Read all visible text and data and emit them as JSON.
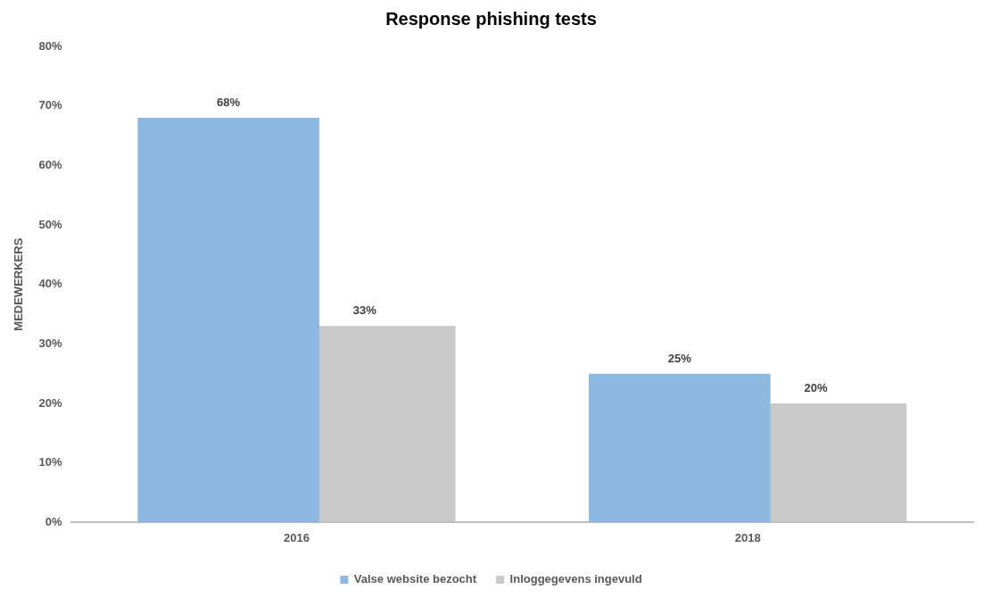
{
  "chart_data": {
    "type": "bar",
    "title": "Response phishing tests",
    "ylabel": "MEDEWERKERS",
    "categories": [
      "2016",
      "2018"
    ],
    "series": [
      {
        "name": "Valse website bezocht",
        "color": "#8db8e2",
        "values": [
          68,
          25
        ],
        "value_labels": [
          "68%",
          "25%"
        ]
      },
      {
        "name": "Inloggegevens ingevuld",
        "color": "#bfbfbf",
        "values": [
          33,
          20
        ],
        "value_labels": [
          "33%",
          "20%"
        ]
      }
    ],
    "ylim": [
      0,
      80
    ],
    "yticks": [
      {
        "value": 0,
        "label": "0%"
      },
      {
        "value": 10,
        "label": "10%"
      },
      {
        "value": 20,
        "label": "20%"
      },
      {
        "value": 30,
        "label": "30%"
      },
      {
        "value": 40,
        "label": "40%"
      },
      {
        "value": 50,
        "label": "50%"
      },
      {
        "value": 60,
        "label": "60%"
      },
      {
        "value": 70,
        "label": "70%"
      },
      {
        "value": 80,
        "label": "80%"
      }
    ],
    "grid": false,
    "legend": "bottom"
  }
}
